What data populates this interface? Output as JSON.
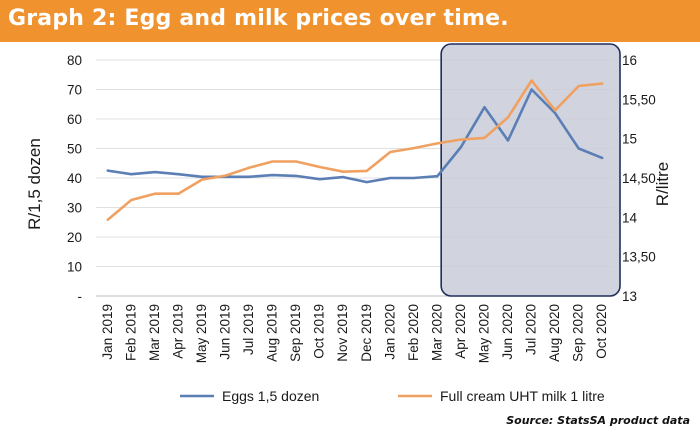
{
  "title": "Graph 2: Egg and milk prices over time.",
  "source": "Source: StatsSA product data",
  "chart_data": {
    "type": "line",
    "categories": [
      "Jan 2019",
      "Feb 2019",
      "Mar 2019",
      "Apr 2019",
      "May 2019",
      "Jun 2019",
      "Jul 2019",
      "Aug 2019",
      "Sep 2019",
      "Oct 2019",
      "Nov 2019",
      "Dec 2019",
      "Jan 2020",
      "Feb 2020",
      "Mar 2020",
      "Apr 2020",
      "May 2020",
      "Jun 2020",
      "Jul 2020",
      "Aug 2020",
      "Sep 2020",
      "Oct 2020"
    ],
    "left_axis": {
      "label": "R/1,5 dozen",
      "ylim": [
        0,
        80
      ],
      "ticks": [
        {
          "value": 0,
          "label": "-"
        },
        {
          "value": 10,
          "label": "10"
        },
        {
          "value": 20,
          "label": "20"
        },
        {
          "value": 30,
          "label": "30"
        },
        {
          "value": 40,
          "label": "40"
        },
        {
          "value": 50,
          "label": "50"
        },
        {
          "value": 60,
          "label": "60"
        },
        {
          "value": 70,
          "label": "70"
        },
        {
          "value": 80,
          "label": "80"
        }
      ]
    },
    "right_axis": {
      "label": "R/litre",
      "ylim": [
        13,
        16
      ],
      "ticks": [
        {
          "value": 13,
          "label": "13"
        },
        {
          "value": 13.5,
          "label": "13,50"
        },
        {
          "value": 14,
          "label": "14"
        },
        {
          "value": 14.5,
          "label": "14,50"
        },
        {
          "value": 15,
          "label": "15"
        },
        {
          "value": 15.5,
          "label": "15,50"
        },
        {
          "value": 16,
          "label": "16"
        }
      ]
    },
    "series": [
      {
        "name": "Eggs 1,5 dozen",
        "axis": "left",
        "color": "#5b7fb5",
        "values": [
          42.5,
          41.3,
          42.0,
          41.3,
          40.4,
          40.4,
          40.4,
          41.0,
          40.7,
          39.6,
          40.3,
          38.6,
          40.0,
          40.0,
          40.6,
          50.5,
          64.0,
          52.7,
          70.0,
          62.0,
          50.0,
          46.8
        ]
      },
      {
        "name": "Full cream UHT milk 1 litre",
        "axis": "right",
        "color": "#f0a060",
        "values": [
          13.97,
          14.22,
          14.3,
          14.3,
          14.48,
          14.53,
          14.63,
          14.71,
          14.71,
          14.64,
          14.58,
          14.59,
          14.83,
          14.88,
          14.94,
          14.99,
          15.01,
          15.27,
          15.74,
          15.36,
          15.67,
          15.7
        ]
      }
    ],
    "highlight": {
      "from": "Apr 2020",
      "to": "Oct 2020",
      "color": "#c9ccd8"
    },
    "grid": true,
    "legend": "bottom"
  }
}
